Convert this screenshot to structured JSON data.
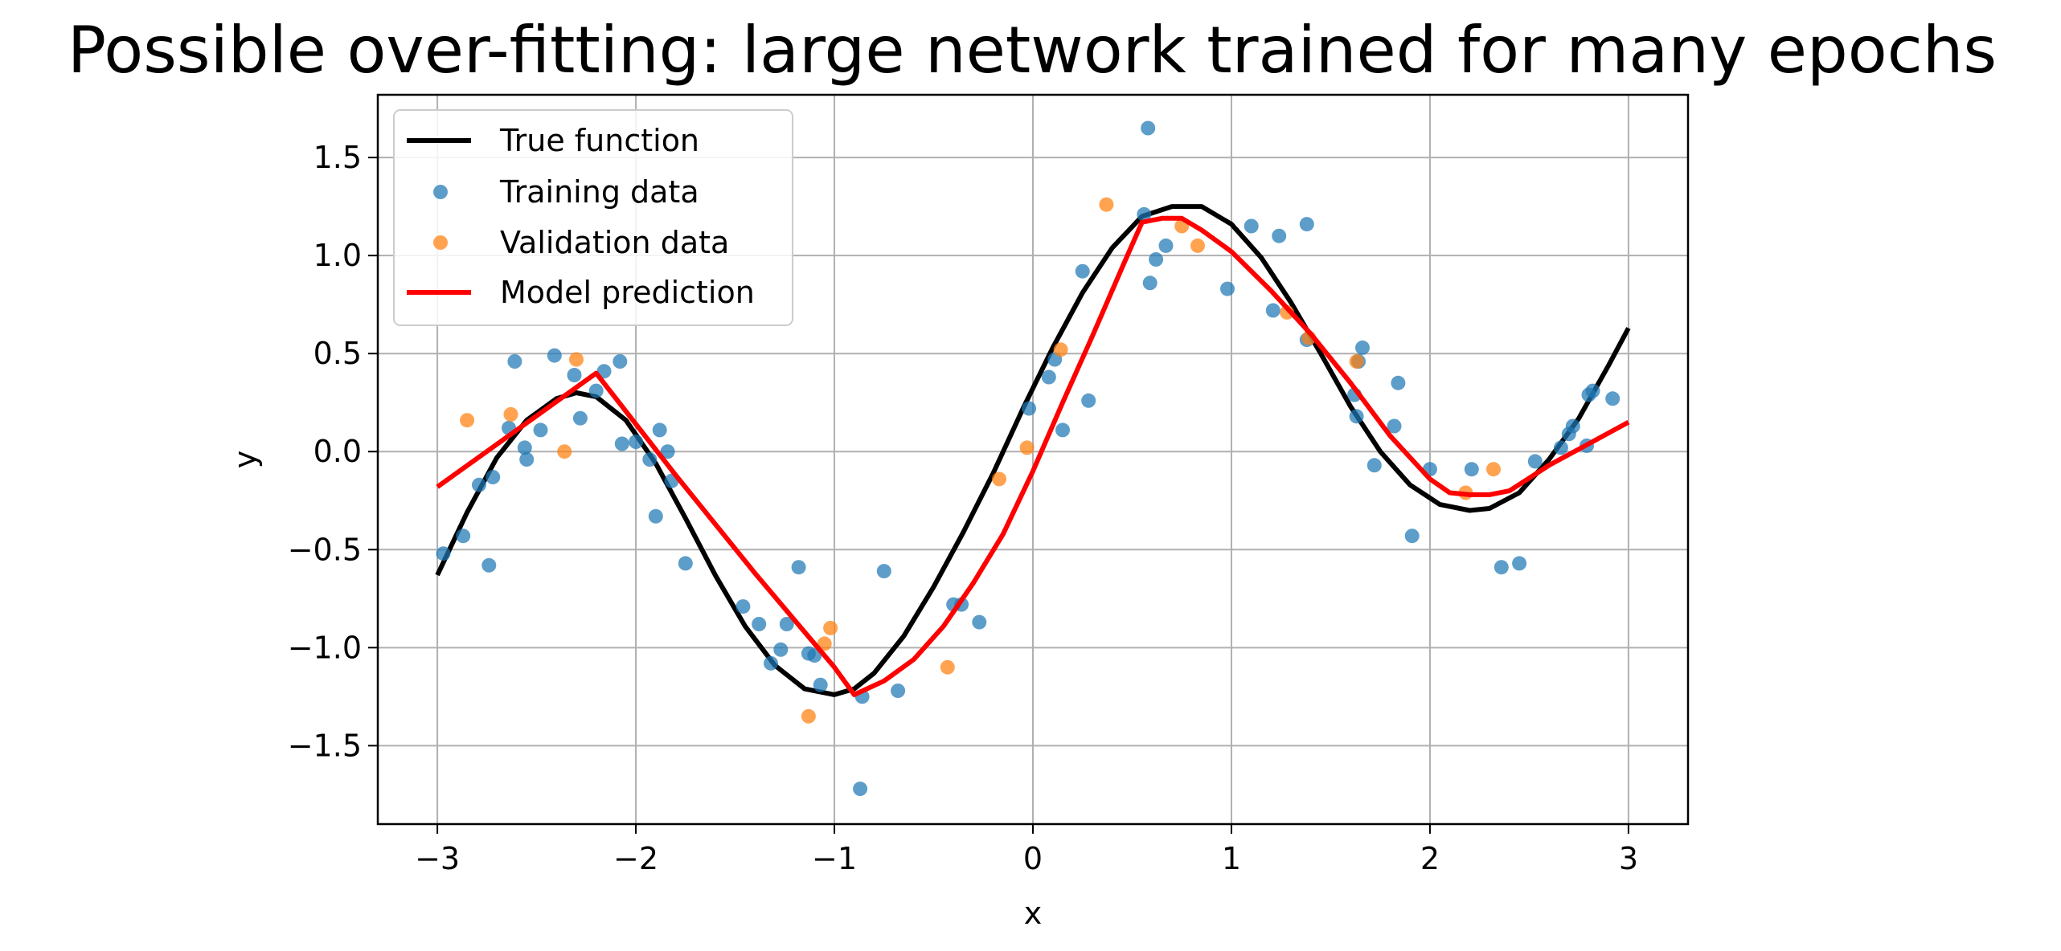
{
  "chart_data": {
    "type": "scatter",
    "title": "Possible over-fitting: large network trained for many epochs",
    "xlabel": "x",
    "ylabel": "y",
    "xlim": [
      -3.3,
      3.3
    ],
    "ylim": [
      -1.9,
      1.82
    ],
    "x_ticks": [
      -3,
      -2,
      -1,
      0,
      1,
      2,
      3
    ],
    "x_tick_labels": [
      "−3",
      "−2",
      "−1",
      "0",
      "1",
      "2",
      "3"
    ],
    "y_ticks": [
      -1.5,
      -1.0,
      -0.5,
      0.0,
      0.5,
      1.0,
      1.5
    ],
    "y_tick_labels": [
      "−1.5",
      "−1.0",
      "−0.5",
      "0.0",
      "0.5",
      "1.0",
      "1.5"
    ],
    "grid": true,
    "legend_position": "top-left",
    "legend": [
      "True function",
      "Training data",
      "Validation data",
      "Model prediction"
    ],
    "series": [
      {
        "name": "True function",
        "kind": "line",
        "color": "#000000",
        "x": [
          -3.0,
          -2.85,
          -2.7,
          -2.55,
          -2.4,
          -2.3,
          -2.2,
          -2.05,
          -1.9,
          -1.75,
          -1.6,
          -1.45,
          -1.3,
          -1.15,
          -1.0,
          -0.9,
          -0.8,
          -0.65,
          -0.5,
          -0.35,
          -0.2,
          -0.05,
          0.1,
          0.25,
          0.4,
          0.55,
          0.7,
          0.85,
          1.0,
          1.15,
          1.3,
          1.45,
          1.6,
          1.75,
          1.9,
          2.05,
          2.2,
          2.3,
          2.45,
          2.6,
          2.75,
          2.9,
          3.0
        ],
        "y": [
          -0.63,
          -0.31,
          -0.03,
          0.16,
          0.27,
          0.3,
          0.28,
          0.16,
          -0.06,
          -0.34,
          -0.63,
          -0.89,
          -1.09,
          -1.21,
          -1.24,
          -1.21,
          -1.13,
          -0.94,
          -0.69,
          -0.41,
          -0.11,
          0.22,
          0.53,
          0.81,
          1.04,
          1.2,
          1.25,
          1.25,
          1.16,
          0.99,
          0.76,
          0.5,
          0.23,
          0.0,
          -0.17,
          -0.27,
          -0.3,
          -0.29,
          -0.21,
          -0.04,
          0.17,
          0.44,
          0.63
        ]
      },
      {
        "name": "Training data",
        "kind": "scatter",
        "color": "#1f77b4",
        "x": [
          -2.97,
          -2.87,
          -2.79,
          -2.74,
          -2.72,
          -2.64,
          -2.61,
          -2.56,
          -2.55,
          -2.48,
          -2.41,
          -2.31,
          -2.28,
          -2.2,
          -2.16,
          -2.07,
          -2.08,
          -2.0,
          -1.93,
          -1.9,
          -1.88,
          -1.84,
          -1.82,
          -1.75,
          -1.46,
          -1.38,
          -1.32,
          -1.27,
          -1.24,
          -1.18,
          -1.13,
          -1.1,
          -1.07,
          -0.86,
          -0.87,
          -0.68,
          -0.75,
          -0.4,
          -0.36,
          -0.27,
          -0.02,
          0.08,
          0.11,
          0.15,
          0.25,
          0.28,
          0.56,
          0.58,
          0.59,
          0.62,
          0.67,
          0.98,
          1.1,
          1.21,
          1.24,
          1.38,
          1.38,
          1.62,
          1.63,
          1.64,
          1.66,
          1.72,
          1.82,
          1.84,
          1.91,
          2.0,
          2.21,
          2.36,
          2.45,
          2.53,
          2.66,
          2.7,
          2.72,
          2.79,
          2.8,
          2.82,
          2.92
        ],
        "y": [
          -0.52,
          -0.43,
          -0.17,
          -0.58,
          -0.13,
          0.12,
          0.46,
          0.02,
          -0.04,
          0.11,
          0.49,
          0.39,
          0.17,
          0.31,
          0.41,
          0.04,
          0.46,
          0.05,
          -0.04,
          -0.33,
          0.11,
          0.0,
          -0.15,
          -0.57,
          -0.79,
          -0.88,
          -1.08,
          -1.01,
          -0.88,
          -0.59,
          -1.03,
          -1.04,
          -1.19,
          -1.25,
          -1.72,
          -1.22,
          -0.61,
          -0.78,
          -0.78,
          -0.87,
          0.22,
          0.38,
          0.47,
          0.11,
          0.92,
          0.26,
          1.21,
          1.65,
          0.86,
          0.98,
          1.05,
          0.83,
          1.15,
          0.72,
          1.1,
          1.16,
          0.57,
          0.29,
          0.18,
          0.46,
          0.53,
          -0.07,
          0.13,
          0.35,
          -0.43,
          -0.09,
          -0.09,
          -0.59,
          -0.57,
          -0.05,
          0.02,
          0.09,
          0.13,
          0.03,
          0.29,
          0.31,
          0.27
        ]
      },
      {
        "name": "Validation data",
        "kind": "scatter",
        "color": "#ff7f0e",
        "x": [
          -2.85,
          -2.63,
          -2.36,
          -2.3,
          -1.13,
          -1.05,
          -1.02,
          -0.43,
          -0.17,
          -0.03,
          0.14,
          0.37,
          0.75,
          0.83,
          1.28,
          1.39,
          1.63,
          2.18,
          2.32
        ],
        "y": [
          0.16,
          0.19,
          0.0,
          0.47,
          -1.35,
          -0.98,
          -0.9,
          -1.1,
          -0.14,
          0.02,
          0.52,
          1.26,
          1.15,
          1.05,
          0.71,
          0.58,
          0.46,
          -0.21,
          -0.09
        ]
      },
      {
        "name": "Model prediction",
        "kind": "line",
        "color": "#ff0000",
        "x": [
          -3.0,
          -2.2,
          -1.8,
          -1.6,
          -1.4,
          -1.2,
          -1.0,
          -0.9,
          -0.75,
          -0.6,
          -0.45,
          -0.3,
          -0.15,
          0.0,
          0.15,
          0.3,
          0.45,
          0.55,
          0.65,
          0.75,
          0.85,
          1.0,
          1.2,
          1.4,
          1.6,
          1.8,
          2.0,
          2.1,
          2.2,
          2.3,
          2.4,
          2.6,
          2.8,
          3.0
        ],
        "y": [
          -0.18,
          0.4,
          -0.12,
          -0.37,
          -0.62,
          -0.86,
          -1.1,
          -1.24,
          -1.17,
          -1.06,
          -0.89,
          -0.67,
          -0.42,
          -0.1,
          0.25,
          0.59,
          0.94,
          1.17,
          1.19,
          1.19,
          1.13,
          1.02,
          0.82,
          0.6,
          0.35,
          0.08,
          -0.14,
          -0.21,
          -0.22,
          -0.22,
          -0.2,
          -0.07,
          0.04,
          0.15
        ]
      }
    ]
  }
}
